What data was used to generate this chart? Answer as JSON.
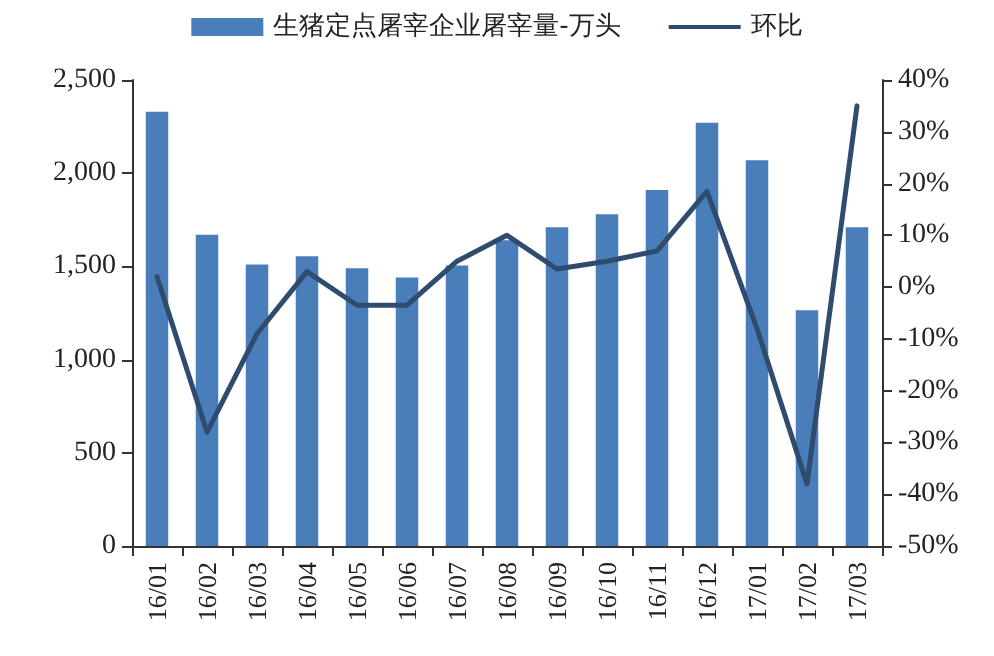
{
  "chart_data": {
    "type": "bar",
    "categories": [
      "16/01",
      "16/02",
      "16/03",
      "16/04",
      "16/05",
      "16/06",
      "16/07",
      "16/08",
      "16/09",
      "16/10",
      "16/11",
      "16/12",
      "17/01",
      "17/02",
      "17/03"
    ],
    "series": [
      {
        "name": "生猪定点屠宰企业屠宰量-万头",
        "color": "#4a7ebb",
        "values": [
          2330,
          1670,
          1510,
          1555,
          1490,
          1440,
          1505,
          1640,
          1710,
          1780,
          1910,
          2270,
          2070,
          1265,
          1710
        ]
      },
      {
        "name": "环比",
        "type": "line",
        "axis": "y2",
        "color": "#2f4b6e",
        "values": [
          2,
          -28,
          -9,
          3,
          -3.5,
          -3.5,
          5,
          10,
          3.5,
          5,
          7,
          18.5,
          -8,
          -38,
          35
        ]
      }
    ],
    "ylim": [
      0,
      2500
    ],
    "yticks": [
      0,
      500,
      {
        "value": 1000,
        "label": "1,000"
      },
      {
        "value": 1500,
        "label": "1,500"
      },
      {
        "value": 2000,
        "label": "2,000"
      },
      {
        "value": 2500,
        "label": "2,500"
      }
    ],
    "y2lim": [
      -50,
      40
    ],
    "y2ticks": [
      {
        "value": -50,
        "label": "-50%"
      },
      {
        "value": -40,
        "label": "-40%"
      },
      {
        "value": -30,
        "label": "-30%"
      },
      {
        "value": -20,
        "label": "-20%"
      },
      {
        "value": -10,
        "label": "-10%"
      },
      {
        "value": 0,
        "label": "0%"
      },
      {
        "value": 10,
        "label": "10%"
      },
      {
        "value": 20,
        "label": "20%"
      },
      {
        "value": 30,
        "label": "30%"
      },
      {
        "value": 40,
        "label": "40%"
      }
    ],
    "grid": false,
    "legend": "top",
    "marker": "none"
  }
}
